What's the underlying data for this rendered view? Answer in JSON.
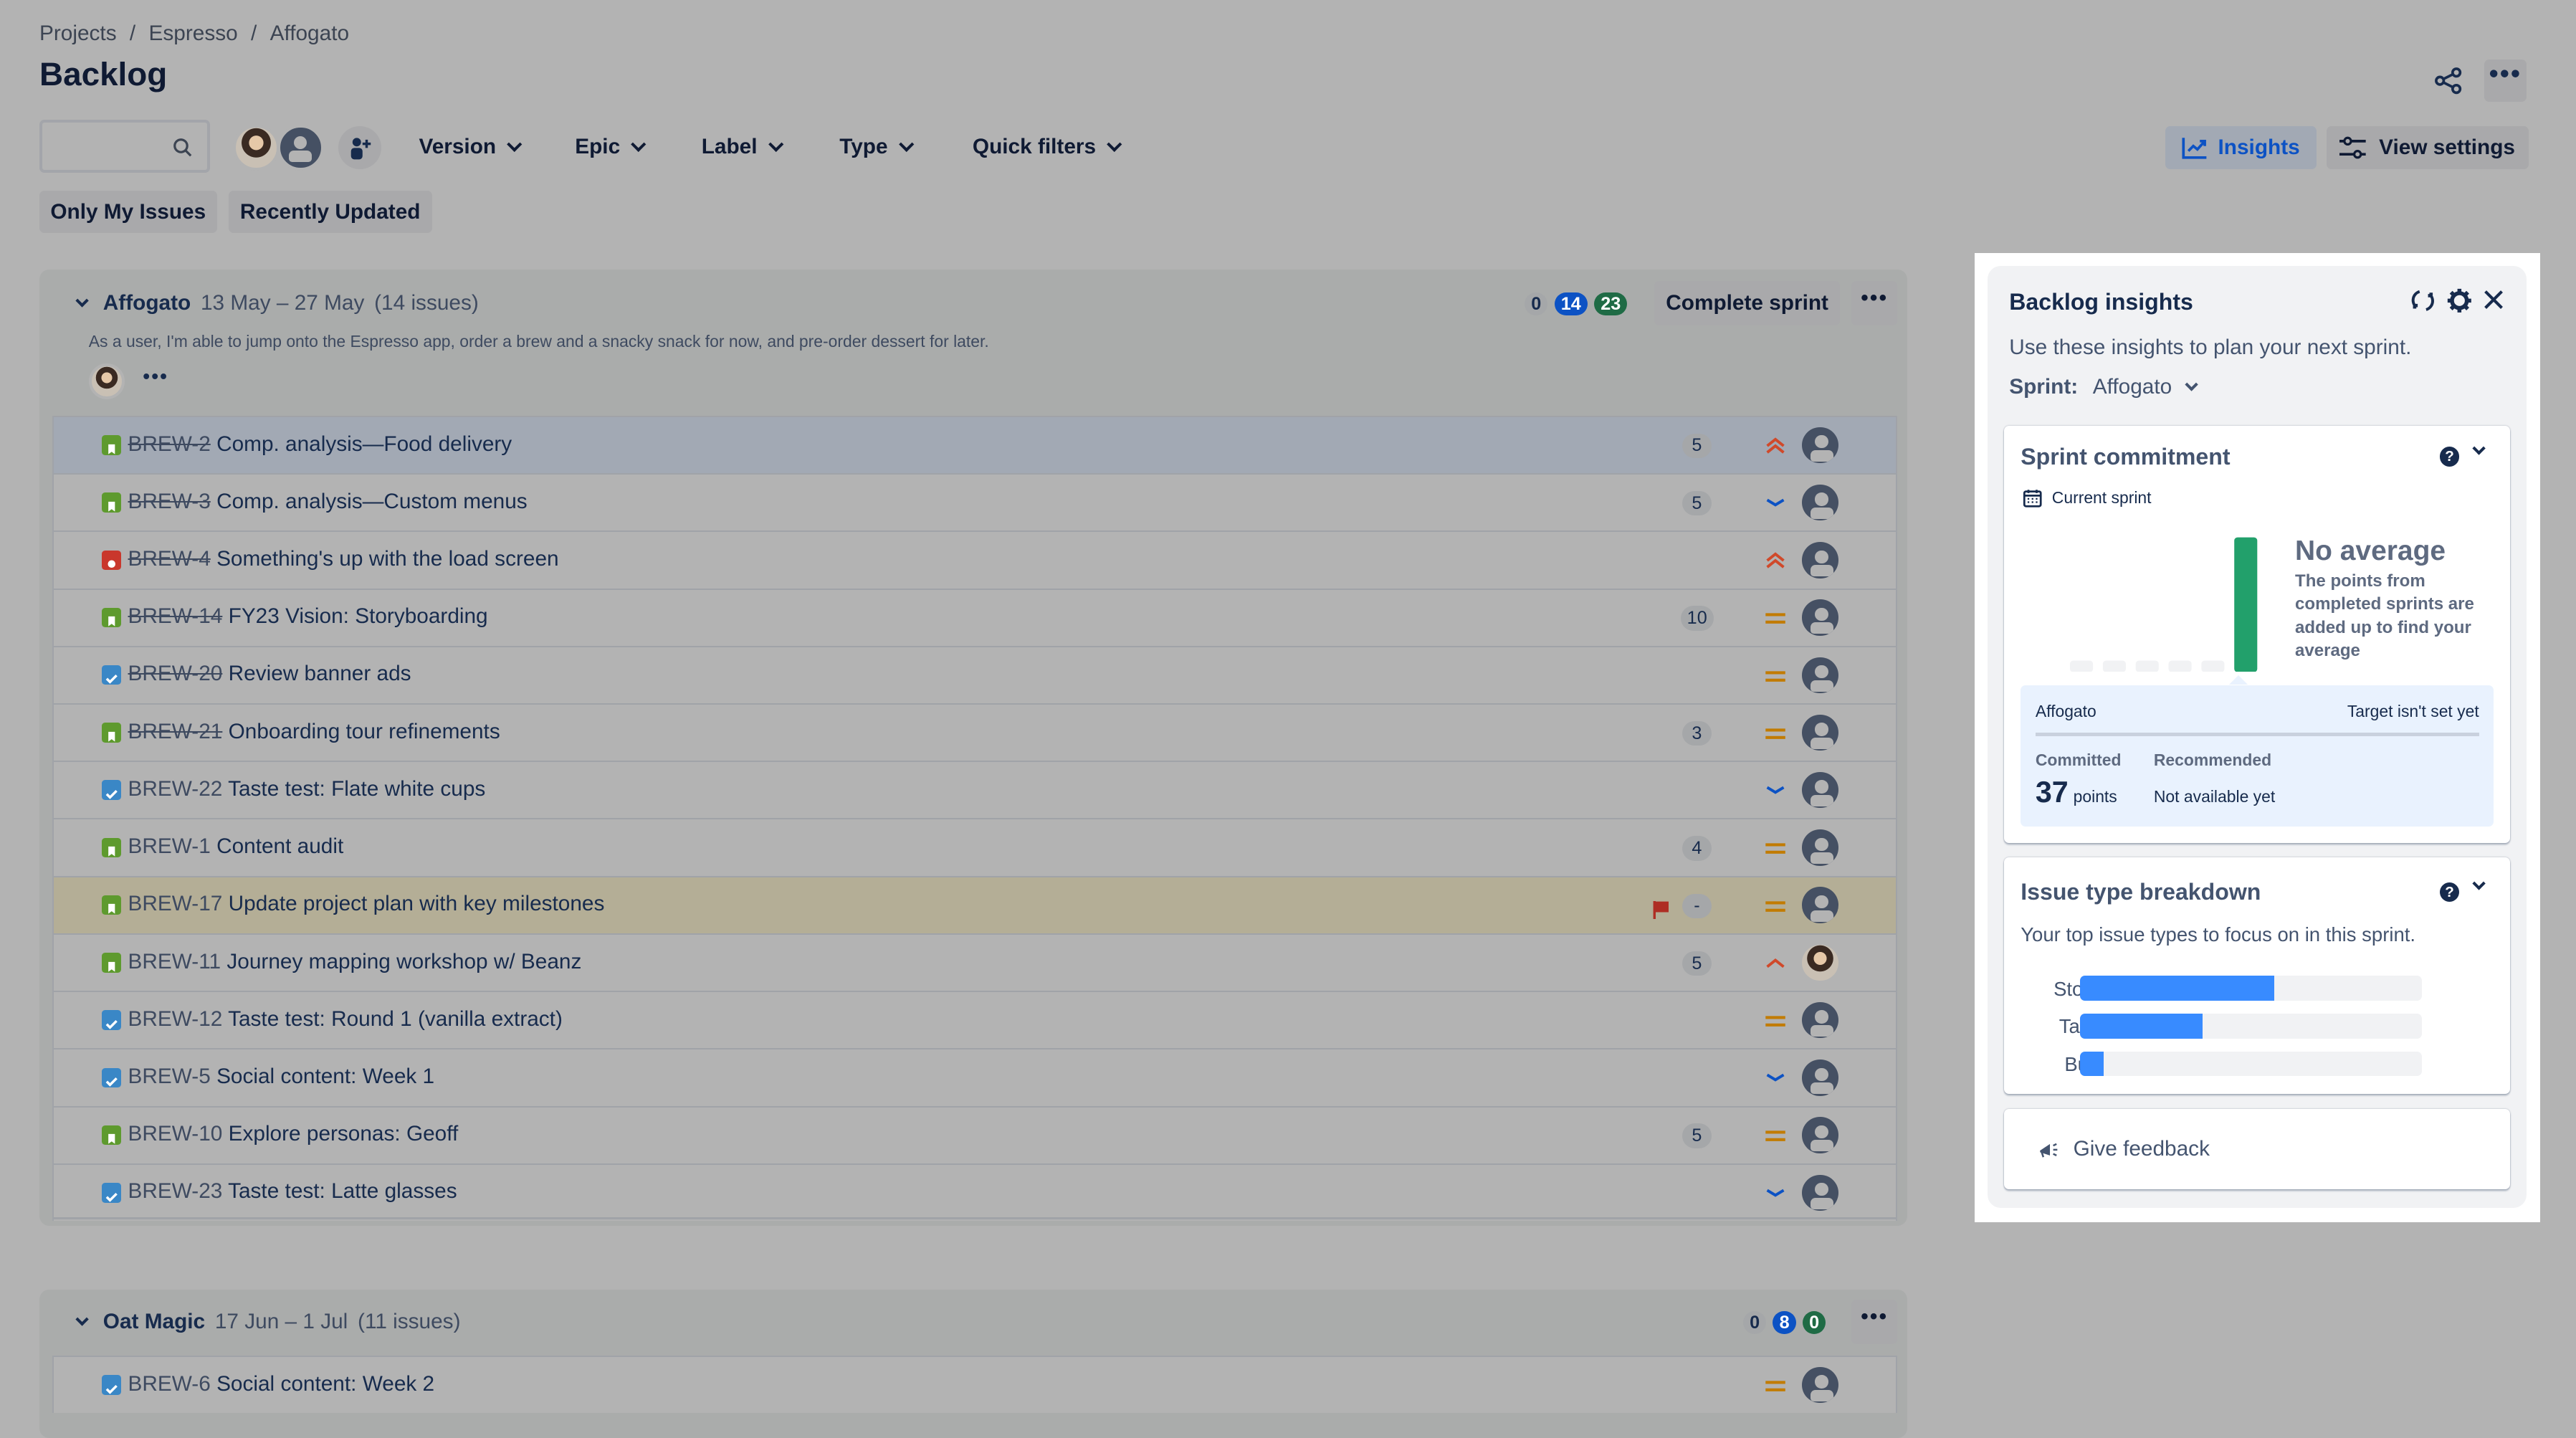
{
  "breadcrumbs": [
    "Projects",
    "Espresso",
    "Affogato"
  ],
  "page_title": "Backlog",
  "toolbar": {
    "search_placeholder": "",
    "filters": [
      "Version",
      "Epic",
      "Label",
      "Type",
      "Quick filters"
    ],
    "insights_label": "Insights",
    "view_settings_label": "View settings",
    "quick_buttons": [
      "Only My Issues",
      "Recently Updated"
    ]
  },
  "colors": {
    "story": "#5e9a2e",
    "task": "#3a87c6",
    "bug": "#c9372c",
    "accent": "#0c52c4",
    "done": "#1f6b45",
    "chart_bar": "#22a06b",
    "breakdown_bar": "#388bff"
  },
  "sprints": [
    {
      "name": "Affogato",
      "dates": "13 May – 27 May",
      "count": "(14 issues)",
      "goal": "As a user, I'm able to jump onto the Espresso app, order a brew and a snacky snack for now, and pre-order dessert for later.",
      "status_counts": {
        "todo": "0",
        "in_progress": "14",
        "done": "23"
      },
      "complete_label": "Complete sprint",
      "issues": [
        {
          "type": "story",
          "key": "BREW-2",
          "done": true,
          "summary": "Comp. analysis—Food delivery",
          "points": "5",
          "priority": "highest",
          "assignee": "unassigned",
          "selected": true
        },
        {
          "type": "story",
          "key": "BREW-3",
          "done": true,
          "summary": "Comp. analysis—Custom menus",
          "points": "5",
          "priority": "low",
          "assignee": "unassigned"
        },
        {
          "type": "bug",
          "key": "BREW-4",
          "done": true,
          "summary": "Something's up with the load screen",
          "points": "",
          "priority": "highest",
          "assignee": "unassigned"
        },
        {
          "type": "story",
          "key": "BREW-14",
          "done": true,
          "summary": "FY23 Vision: Storyboarding",
          "points": "10",
          "priority": "medium",
          "assignee": "unassigned"
        },
        {
          "type": "task",
          "key": "BREW-20",
          "done": true,
          "summary": "Review banner ads",
          "points": "",
          "priority": "medium",
          "assignee": "unassigned"
        },
        {
          "type": "story",
          "key": "BREW-21",
          "done": true,
          "summary": "Onboarding tour refinements",
          "points": "3",
          "priority": "medium",
          "assignee": "unassigned"
        },
        {
          "type": "task",
          "key": "BREW-22",
          "done": false,
          "summary": "Taste test: Flate white cups",
          "points": "",
          "priority": "low",
          "assignee": "unassigned"
        },
        {
          "type": "story",
          "key": "BREW-1",
          "done": false,
          "summary": "Content audit",
          "points": "4",
          "priority": "medium",
          "assignee": "unassigned"
        },
        {
          "type": "story",
          "key": "BREW-17",
          "done": false,
          "summary": "Update project plan with key milestones",
          "points": "-",
          "priority": "medium",
          "assignee": "unassigned",
          "flagged": true
        },
        {
          "type": "story",
          "key": "BREW-11",
          "done": false,
          "summary": "Journey mapping workshop w/ Beanz",
          "points": "5",
          "priority": "high",
          "assignee": "photo"
        },
        {
          "type": "task",
          "key": "BREW-12",
          "done": false,
          "summary": "Taste test: Round 1 (vanilla extract)",
          "points": "",
          "priority": "medium",
          "assignee": "unassigned"
        },
        {
          "type": "task",
          "key": "BREW-5",
          "done": false,
          "summary": "Social content: Week 1",
          "points": "",
          "priority": "low",
          "assignee": "unassigned"
        },
        {
          "type": "story",
          "key": "BREW-10",
          "done": false,
          "summary": "Explore personas: Geoff",
          "points": "5",
          "priority": "medium",
          "assignee": "unassigned"
        },
        {
          "type": "task",
          "key": "BREW-23",
          "done": false,
          "summary": "Taste test: Latte glasses",
          "points": "",
          "priority": "low",
          "assignee": "unassigned"
        }
      ]
    },
    {
      "name": "Oat Magic",
      "dates": "17 Jun – 1 Jul",
      "count": "(11 issues)",
      "status_counts": {
        "todo": "0",
        "in_progress": "8",
        "done": "0"
      },
      "issues": [
        {
          "type": "task",
          "key": "BREW-6",
          "done": false,
          "summary": "Social content: Week 2",
          "points": "",
          "priority": "medium",
          "assignee": "unassigned"
        }
      ]
    }
  ],
  "insights": {
    "title": "Backlog insights",
    "subtitle": "Use these insights to plan your next sprint.",
    "sprint_label": "Sprint:",
    "sprint_value": "Affogato",
    "commitment": {
      "title": "Sprint commitment",
      "period": "Current sprint",
      "avg_title": "No average",
      "avg_text": "The points from completed sprints are added up to find your average",
      "sprint_name": "Affogato",
      "target": "Target isn't set yet",
      "committed_label": "Committed",
      "committed_value": "37",
      "committed_unit": "points",
      "recommended_label": "Recommended",
      "recommended_value": "Not available yet"
    },
    "breakdown": {
      "title": "Issue type breakdown",
      "subtitle": "Your top issue types to focus on in this sprint.",
      "items": [
        {
          "label": "Story",
          "fraction": 0.57
        },
        {
          "label": "Task",
          "fraction": 0.36
        },
        {
          "label": "Bug",
          "fraction": 0.07
        }
      ]
    },
    "feedback_label": "Give feedback"
  }
}
